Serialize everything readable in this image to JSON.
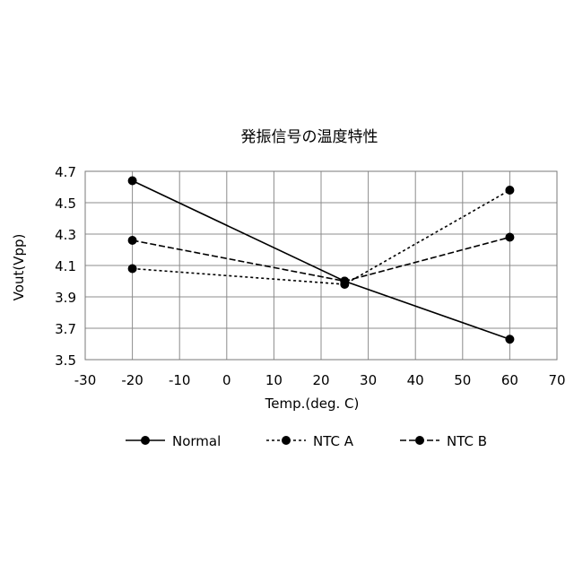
{
  "chart_data": {
    "type": "line",
    "title": "発振信号の温度特性",
    "xlabel": "Temp.(deg. C)",
    "ylabel": "Vout(Vpp)",
    "xlim": [
      -30,
      70
    ],
    "ylim": [
      3.5,
      4.7
    ],
    "xticks": [
      -30,
      -20,
      -10,
      0,
      10,
      20,
      30,
      40,
      50,
      60,
      70
    ],
    "yticks": [
      3.5,
      3.7,
      3.9,
      4.1,
      4.3,
      4.5,
      4.7
    ],
    "ytick_labels": [
      "3.5",
      "3.7",
      "3.9",
      "4.1",
      "4.3",
      "4.5",
      "4.7"
    ],
    "grid": true,
    "legend_position": "bottom",
    "x": [
      -20,
      25,
      60
    ],
    "series": [
      {
        "name": "Normal",
        "style": "solid",
        "values": [
          4.64,
          4.0,
          3.63
        ]
      },
      {
        "name": "NTC A",
        "style": "dotted",
        "values": [
          4.08,
          3.98,
          4.58
        ]
      },
      {
        "name": "NTC B",
        "style": "dashed",
        "values": [
          4.26,
          4.0,
          4.28
        ]
      }
    ]
  }
}
